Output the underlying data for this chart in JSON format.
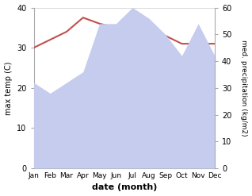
{
  "months": [
    "Jan",
    "Feb",
    "Mar",
    "Apr",
    "May",
    "Jun",
    "Jul",
    "Aug",
    "Sep",
    "Oct",
    "Nov",
    "Dec"
  ],
  "max_temp": [
    30,
    32,
    34,
    37.5,
    36,
    35,
    31,
    31,
    33,
    31,
    31,
    31
  ],
  "precipitation": [
    32,
    28,
    32,
    36,
    54,
    54,
    60,
    56,
    50,
    42,
    54,
    42
  ],
  "temp_color": "#c0504d",
  "precip_fill_color": "#c5ccee",
  "bg_color": "#ffffff",
  "xlabel": "date (month)",
  "ylabel_left": "max temp (C)",
  "ylabel_right": "med. precipitation (kg/m2)",
  "ylim_left": [
    0,
    40
  ],
  "ylim_right": [
    0,
    60
  ],
  "yticks_left": [
    0,
    10,
    20,
    30,
    40
  ],
  "yticks_right": [
    0,
    10,
    20,
    30,
    40,
    50,
    60
  ]
}
